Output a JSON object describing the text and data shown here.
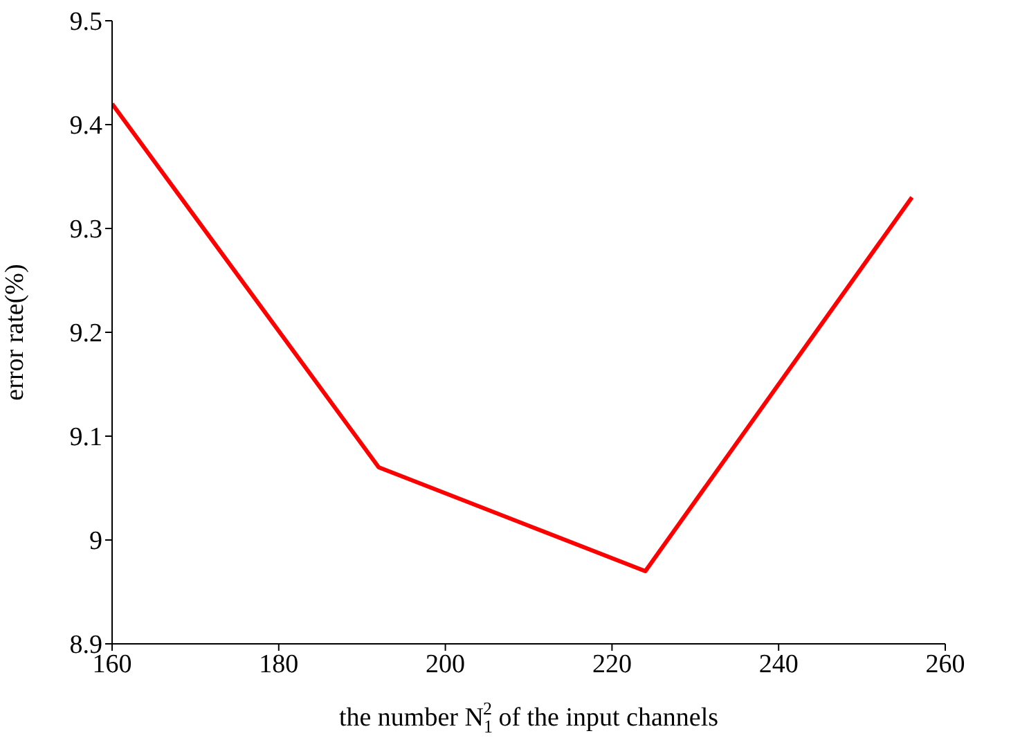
{
  "chart_data": {
    "type": "line",
    "xlabel": "the number N$_{1}$$^{2}$ of the input channels",
    "ylabel": "error rate(%)",
    "x": [
      160,
      192,
      224,
      256
    ],
    "series": [
      {
        "color": "#ff0000",
        "values": [
          9.42,
          9.07,
          8.97,
          9.33
        ]
      }
    ],
    "xlim": [
      160,
      260
    ],
    "ylim": [
      8.9,
      9.5
    ],
    "xticks": [
      160,
      180,
      200,
      220,
      240,
      260
    ],
    "yticks": [
      8.9,
      9,
      9.1,
      9.2,
      9.3,
      9.4,
      9.5
    ],
    "line_style": "solid"
  }
}
